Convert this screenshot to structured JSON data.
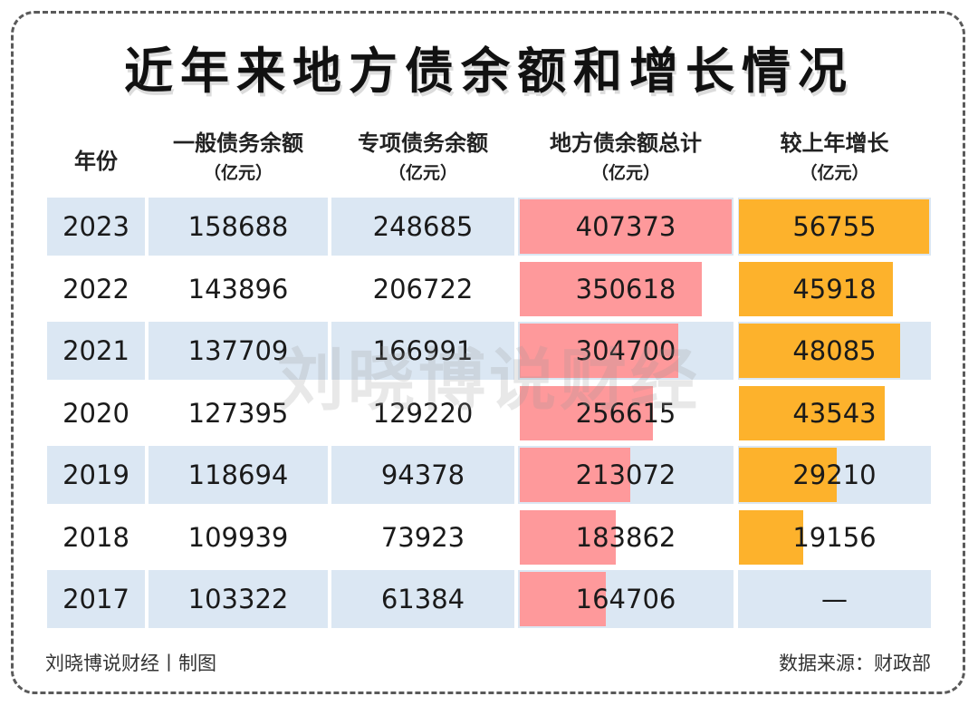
{
  "title": "近年来地方债余额和增长情况",
  "headers": {
    "year": "年份",
    "general": {
      "label": "一般债务余额",
      "unit": "（亿元）"
    },
    "special": {
      "label": "专项债务余额",
      "unit": "（亿元）"
    },
    "total": {
      "label": "地方债余额总计",
      "unit": "（亿元）"
    },
    "growth": {
      "label": "较上年增长",
      "unit": "（亿元）"
    }
  },
  "rows": [
    {
      "year": "2023",
      "general": "158688",
      "special": "248685",
      "total": "407373",
      "growth": "56755"
    },
    {
      "year": "2022",
      "general": "143896",
      "special": "206722",
      "total": "350618",
      "growth": "45918"
    },
    {
      "year": "2021",
      "general": "137709",
      "special": "166991",
      "total": "304700",
      "growth": "48085"
    },
    {
      "year": "2020",
      "general": "127395",
      "special": "129220",
      "total": "256615",
      "growth": "43543"
    },
    {
      "year": "2019",
      "general": "118694",
      "special": "94378",
      "total": "213072",
      "growth": "29210"
    },
    {
      "year": "2018",
      "general": "109939",
      "special": "73923",
      "total": "183862",
      "growth": "19156"
    },
    {
      "year": "2017",
      "general": "103322",
      "special": "61384",
      "total": "164706",
      "growth": "—"
    }
  ],
  "watermark": "刘晓博说财经",
  "footer": {
    "left": "刘晓博说财经丨制图",
    "right": "数据来源：财政部"
  },
  "colors": {
    "total_bar": "#fe999b",
    "growth_bar": "#fdb22c",
    "row_shade": "#dbe7f3"
  },
  "chart_data": {
    "type": "table",
    "title": "近年来地方债余额和增长情况",
    "columns": [
      "年份",
      "一般债务余额（亿元）",
      "专项债务余额（亿元）",
      "地方债余额总计（亿元）",
      "较上年增长（亿元）"
    ],
    "categories": [
      "2023",
      "2022",
      "2021",
      "2020",
      "2019",
      "2018",
      "2017"
    ],
    "series": [
      {
        "name": "一般债务余额",
        "values": [
          158688,
          143896,
          137709,
          127395,
          118694,
          109939,
          103322
        ]
      },
      {
        "name": "专项债务余额",
        "values": [
          248685,
          206722,
          166991,
          129220,
          94378,
          73923,
          61384
        ]
      },
      {
        "name": "地方债余额总计",
        "values": [
          407373,
          350618,
          304700,
          256615,
          213072,
          183862,
          164706
        ],
        "data_bars": true,
        "bar_color": "#fe999b"
      },
      {
        "name": "较上年增长",
        "values": [
          56755,
          45918,
          48085,
          43543,
          29210,
          19156,
          null
        ],
        "data_bars": true,
        "bar_color": "#fdb22c"
      }
    ],
    "source": "数据来源：财政部",
    "credit": "刘晓博说财经丨制图"
  }
}
